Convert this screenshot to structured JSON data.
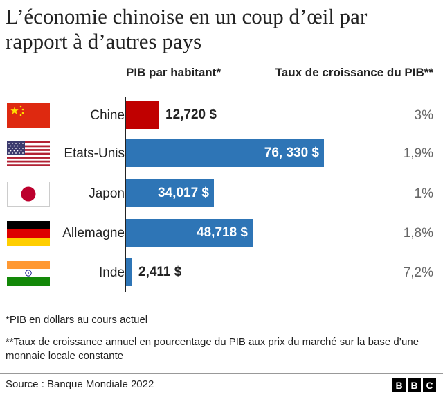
{
  "title_line1": "L’économie chinoise en un coup d’œil par",
  "title_line2": "rapport à d’autres pays",
  "col_pib": "PIB par habitant*",
  "col_growth": "Taux de croissance du PIB**",
  "note1": "*PIB en dollars au cours actuel",
  "note2": "**Taux de croissance annuel en pourcentage du PIB aux prix du marché sur la base d’une monnaie locale constante",
  "source": "Source :  Banque Mondiale 2022",
  "logo": [
    "B",
    "B",
    "C"
  ],
  "colors": {
    "china_bar": "#c00000",
    "bar": "#2e75b6",
    "axis": "#222222"
  },
  "chart_data": {
    "type": "bar",
    "orientation": "horizontal",
    "title": "L’économie chinoise en un coup d’œil par rapport à d’autres pays",
    "series": [
      {
        "name": "PIB par habitant*",
        "unit": "$",
        "values": [
          12720,
          76330,
          34017,
          48718,
          2411
        ]
      },
      {
        "name": "Taux de croissance du PIB**",
        "unit": "%",
        "values": [
          3,
          1.9,
          1,
          1.8,
          7.2
        ]
      }
    ],
    "categories": [
      "Chine",
      "Etats-Unis",
      "Japon",
      "Allemagne",
      "Inde"
    ],
    "value_labels": [
      "12,720 $",
      "76, 330 $",
      "34,017 $",
      "48,718 $",
      "2,411 $"
    ],
    "growth_labels": [
      "3%",
      "1,9%",
      "1%",
      "1,8%",
      "7,2%"
    ],
    "flags": [
      "flag-china-icon",
      "flag-usa-icon",
      "flag-japan-icon",
      "flag-germany-icon",
      "flag-india-icon"
    ],
    "xlim": [
      0,
      76330
    ]
  }
}
